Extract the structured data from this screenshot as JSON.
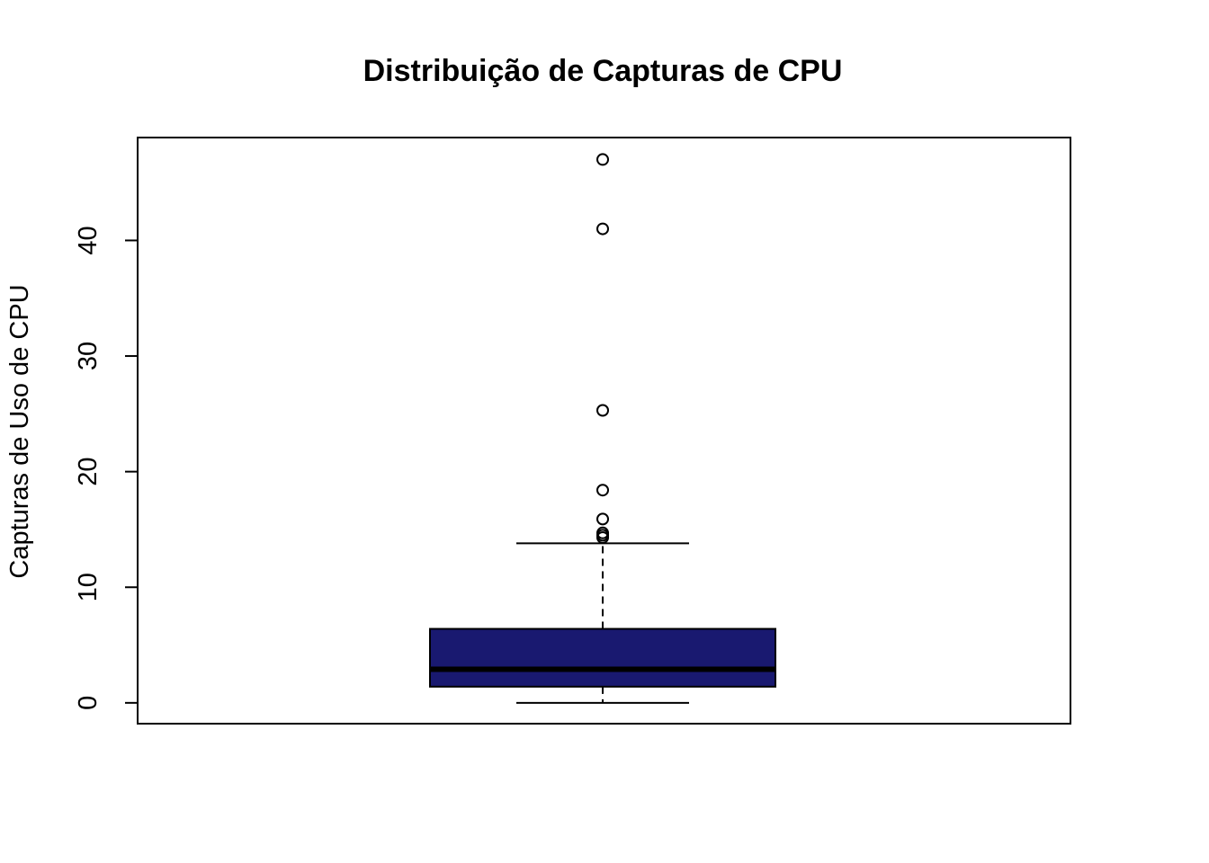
{
  "chart_data": {
    "type": "boxplot",
    "title": "Distribuição de Capturas de CPU",
    "xlabel": "",
    "ylabel": "Capturas de Uso de CPU",
    "ylim": [
      -1.8,
      48.9
    ],
    "yticks": [
      0,
      10,
      20,
      30,
      40
    ],
    "grid": false,
    "colors": {
      "box_fill": "#191970",
      "median": "#000000",
      "border": "#000000"
    },
    "box": {
      "whisker_low": 0,
      "q1": 1.4,
      "median": 2.9,
      "q3": 6.4,
      "whisker_high": 13.8
    },
    "outliers": [
      14.3,
      14.5,
      14.7,
      15.9,
      18.4,
      25.3,
      41.0,
      47.0
    ]
  }
}
